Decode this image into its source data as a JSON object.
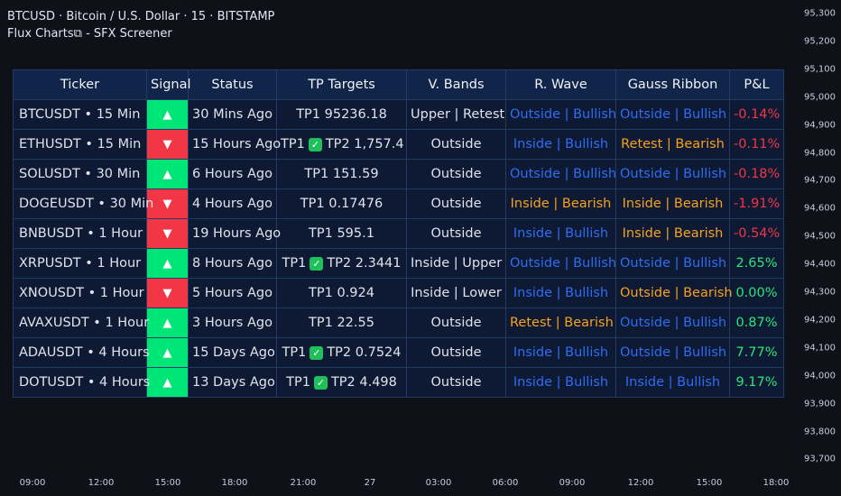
{
  "header": {
    "line1": "BTCUSD · Bitcoin / U.S. Dollar · 15 · BITSTAMP",
    "line2": "Flux Charts⧉ - SFX Screener"
  },
  "price_axis": [
    "95,300",
    "95,200",
    "95,100",
    "95,000",
    "94,900",
    "94,800",
    "94,700",
    "94,600",
    "94,500",
    "94,400",
    "94,300",
    "94,200",
    "94,100",
    "94,000",
    "93,900",
    "93,800",
    "93,700"
  ],
  "time_axis": [
    "09:00",
    "12:00",
    "15:00",
    "18:00",
    "21:00",
    "27",
    "03:00",
    "06:00",
    "09:00",
    "12:00",
    "15:00",
    "18:00"
  ],
  "columns": [
    "Ticker",
    "Signal",
    "Status",
    "TP Targets",
    "V. Bands",
    "R. Wave",
    "Gauss Ribbon",
    "P&L"
  ],
  "colors": {
    "up": "#00e676",
    "down": "#f23645",
    "bullish": "#2e6df4",
    "bearish": "#f6a21e",
    "gain": "#29e47b",
    "loss": "#f23645"
  },
  "rows": [
    {
      "ticker": "BTCUSDT • 15 Min",
      "signal": "up",
      "signal_glyph": "▲",
      "status": "30 Mins Ago",
      "tp1": "TP1 95236.18",
      "tp_hit": false,
      "tp2": "",
      "vband": "Upper | Retest",
      "rwave": "Outside | Bullish",
      "rwave_tone": "blue",
      "gauss": "Outside | Bullish",
      "gauss_tone": "blue",
      "pnl": "-0.14%",
      "pnl_tone": "red"
    },
    {
      "ticker": "ETHUSDT • 15 Min",
      "signal": "down",
      "signal_glyph": "▼",
      "status": "15 Hours Ago",
      "tp1": "TP1",
      "tp_hit": true,
      "check": "✓",
      "tp2": "TP2 1,757.4",
      "vband": "Outside",
      "rwave": "Inside | Bullish",
      "rwave_tone": "blue",
      "gauss": "Retest | Bearish",
      "gauss_tone": "orange",
      "pnl": "-0.11%",
      "pnl_tone": "red"
    },
    {
      "ticker": "SOLUSDT • 30 Min",
      "signal": "up",
      "signal_glyph": "▲",
      "status": "6 Hours Ago",
      "tp1": "TP1 151.59",
      "tp_hit": false,
      "tp2": "",
      "vband": "Outside",
      "rwave": "Outside | Bullish",
      "rwave_tone": "blue",
      "gauss": "Outside | Bullish",
      "gauss_tone": "blue",
      "pnl": "-0.18%",
      "pnl_tone": "red"
    },
    {
      "ticker": "DOGEUSDT • 30 Min",
      "signal": "down",
      "signal_glyph": "▼",
      "status": "4 Hours Ago",
      "tp1": "TP1 0.17476",
      "tp_hit": false,
      "tp2": "",
      "vband": "Outside",
      "rwave": "Inside | Bearish",
      "rwave_tone": "orange",
      "gauss": "Inside | Bearish",
      "gauss_tone": "orange",
      "pnl": "-1.91%",
      "pnl_tone": "red"
    },
    {
      "ticker": "BNBUSDT • 1 Hour",
      "signal": "down",
      "signal_glyph": "▼",
      "status": "19 Hours Ago",
      "tp1": "TP1 595.1",
      "tp_hit": false,
      "tp2": "",
      "vband": "Outside",
      "rwave": "Inside | Bullish",
      "rwave_tone": "blue",
      "gauss": "Inside | Bearish",
      "gauss_tone": "orange",
      "pnl": "-0.54%",
      "pnl_tone": "red"
    },
    {
      "ticker": "XRPUSDT • 1 Hour",
      "signal": "up",
      "signal_glyph": "▲",
      "status": "8 Hours Ago",
      "tp1": "TP1",
      "tp_hit": true,
      "check": "✓",
      "tp2": "TP2 2.3441",
      "vband": "Inside | Upper",
      "rwave": "Outside | Bullish",
      "rwave_tone": "blue",
      "gauss": "Outside | Bullish",
      "gauss_tone": "blue",
      "pnl": "2.65%",
      "pnl_tone": "green"
    },
    {
      "ticker": "XNOUSDT • 1 Hour",
      "signal": "down",
      "signal_glyph": "▼",
      "status": "5 Hours Ago",
      "tp1": "TP1 0.924",
      "tp_hit": false,
      "tp2": "",
      "vband": "Inside | Lower",
      "rwave": "Inside | Bullish",
      "rwave_tone": "blue",
      "gauss": "Outside | Bearish",
      "gauss_tone": "orange",
      "pnl": "0.00%",
      "pnl_tone": "green"
    },
    {
      "ticker": "AVAXUSDT • 1 Hour",
      "signal": "up",
      "signal_glyph": "▲",
      "status": "3 Hours Ago",
      "tp1": "TP1 22.55",
      "tp_hit": false,
      "tp2": "",
      "vband": "Outside",
      "rwave": "Retest | Bearish",
      "rwave_tone": "orange",
      "gauss": "Outside | Bullish",
      "gauss_tone": "blue",
      "pnl": "0.87%",
      "pnl_tone": "green"
    },
    {
      "ticker": "ADAUSDT • 4 Hours",
      "signal": "up",
      "signal_glyph": "▲",
      "status": "15 Days Ago",
      "tp1": "TP1",
      "tp_hit": true,
      "check": "✓",
      "tp2": "TP2 0.7524",
      "vband": "Outside",
      "rwave": "Inside | Bullish",
      "rwave_tone": "blue",
      "gauss": "Outside | Bullish",
      "gauss_tone": "blue",
      "pnl": "7.77%",
      "pnl_tone": "green"
    },
    {
      "ticker": "DOTUSDT • 4 Hours",
      "signal": "up",
      "signal_glyph": "▲",
      "status": "13 Days Ago",
      "tp1": "TP1",
      "tp_hit": true,
      "check": "✓",
      "tp2": "TP2 4.498",
      "vband": "Outside",
      "rwave": "Inside | Bullish",
      "rwave_tone": "blue",
      "gauss": "Inside | Bullish",
      "gauss_tone": "blue",
      "pnl": "9.17%",
      "pnl_tone": "green"
    }
  ]
}
